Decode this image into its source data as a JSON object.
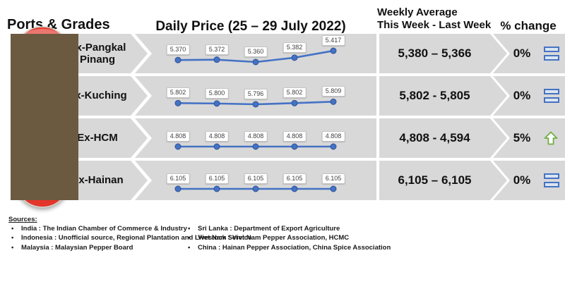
{
  "header": {
    "ports_grades": "Ports & Grades",
    "daily_price": "Daily Price (25 – 29 July 2022)",
    "weekly_avg_line1": "Weekly Average",
    "weekly_avg_line2": "This Week - Last Week",
    "pct_change": "% change"
  },
  "chart_data": {
    "type": "line",
    "title": "Daily Price (25 – 29 July 2022)",
    "x_label": "25 – 29 July 2022 (5 trading days, tick labels not shown)",
    "series": [
      {
        "name": "Ex-Pangkal Pinang",
        "values": [
          5370,
          5372,
          5360,
          5382,
          5417
        ]
      },
      {
        "name": "Ex-Kuching",
        "values": [
          5802,
          5800,
          5796,
          5802,
          5809
        ]
      },
      {
        "name": "Ex-HCM",
        "values": [
          4808,
          4808,
          4808,
          4808,
          4808
        ]
      },
      {
        "name": "Ex-Hainan",
        "values": [
          6105,
          6105,
          6105,
          6105,
          6105
        ]
      }
    ],
    "legend": "none",
    "grid": false
  },
  "rows": [
    {
      "port": "Ex-Pangkal Pinang",
      "flag": "indonesia",
      "values": [
        5370,
        5372,
        5360,
        5382,
        5417
      ],
      "daily_labels": [
        "5.370",
        "5.372",
        "5.360",
        "5.382",
        "5.417"
      ],
      "weekly": "5,380 – 5,366",
      "change": "0%",
      "icon": "equals"
    },
    {
      "port": "Ex-Kuching",
      "flag": "malaysia",
      "values": [
        5802,
        5800,
        5796,
        5802,
        5809
      ],
      "daily_labels": [
        "5.802",
        "5.800",
        "5.796",
        "5.802",
        "5.809"
      ],
      "weekly": "5,802 - 5,805",
      "change": "0%",
      "icon": "equals"
    },
    {
      "port": "Ex-HCM",
      "flag": "vietnam",
      "values": [
        4808,
        4808,
        4808,
        4808,
        4808
      ],
      "daily_labels": [
        "4.808",
        "4.808",
        "4.808",
        "4.808",
        "4.808"
      ],
      "weekly": "4,808 - 4,594",
      "change": "5%",
      "icon": "up-arrow"
    },
    {
      "port": "Ex-Hainan",
      "flag": "china",
      "values": [
        6105,
        6105,
        6105,
        6105,
        6105
      ],
      "daily_labels": [
        "6.105",
        "6.105",
        "6.105",
        "6.105",
        "6.105"
      ],
      "weekly": "6,105 – 6,105",
      "change": "0%",
      "icon": "equals"
    }
  ],
  "sources": {
    "title": "Sources:",
    "left": [
      "India : The Indian Chamber of Commerce & Industry",
      "Indonesia : Unofficial source, Regional Plantation and Livestock Service",
      "Malaysia : Malaysian Pepper Board"
    ],
    "right": [
      "Sri Lanka : Department of Export Agriculture",
      "Viet Nam : Viet Nam Pepper Association, HCMC",
      "China : Hainan Pepper Association, China Spice Association"
    ]
  },
  "colors": {
    "band_gray": "#d8d8d8",
    "line_blue": "#4472c4",
    "up_green": "#70ad47"
  }
}
